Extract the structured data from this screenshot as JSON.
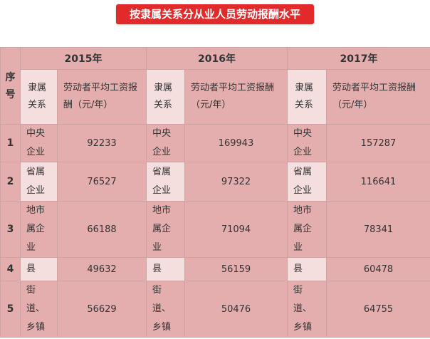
{
  "title": "按隶属关系分从业人员劳动报酬水平",
  "table": {
    "seq_header": "序号",
    "years": [
      "2015年",
      "2016年",
      "2017年"
    ],
    "relation_header": "隶属关系",
    "wage_header": "劳动者平均工资报酬（元/年）",
    "rows": [
      {
        "seq": "1",
        "relation": "中央企业",
        "values": [
          "92233",
          "169943",
          "157287"
        ]
      },
      {
        "seq": "2",
        "relation": "省属企业",
        "values": [
          "76527",
          "97322",
          "116641"
        ]
      },
      {
        "seq": "3",
        "relation": "地市属企业",
        "values": [
          "66188",
          "71094",
          "78341"
        ]
      },
      {
        "seq": "4",
        "relation": "县",
        "values": [
          "49632",
          "56159",
          "60478"
        ]
      },
      {
        "seq": "5",
        "relation": "街道、乡镇",
        "values": [
          "56629",
          "50476",
          "64755"
        ]
      }
    ]
  }
}
